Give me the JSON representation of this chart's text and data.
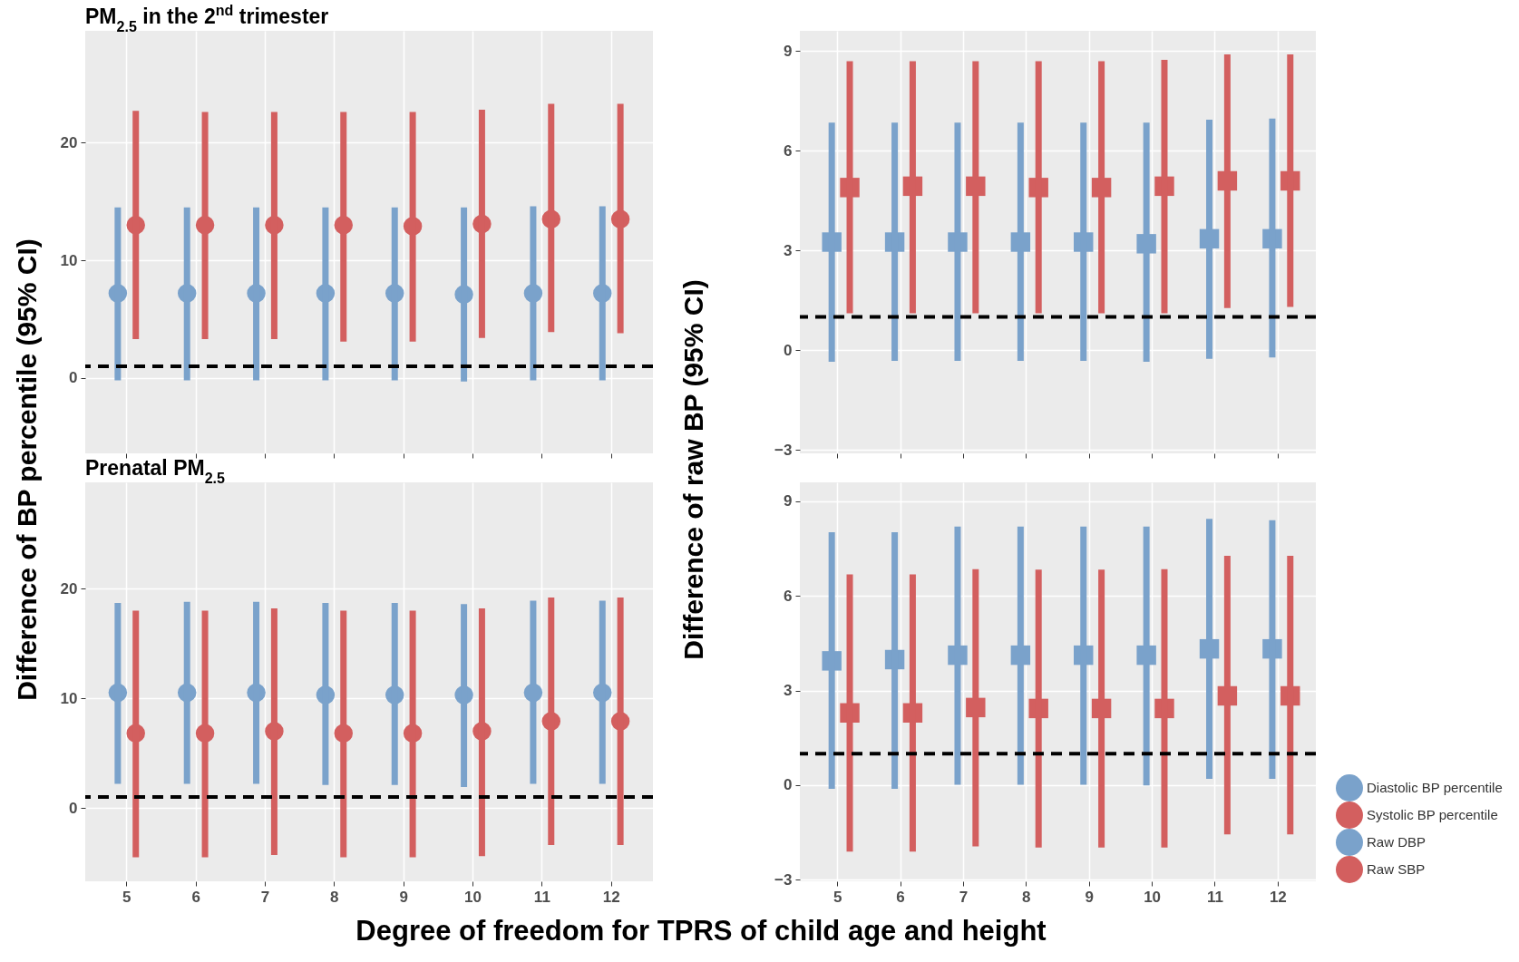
{
  "chart_data": [
    {
      "type": "scatter",
      "title": "PM$_{2.5}$ in the 2$^{nd}$ trimester",
      "ylabel": "Difference of BP percentile (95% CI)",
      "categories": [
        "5",
        "6",
        "7",
        "8",
        "9",
        "10",
        "11",
        "12"
      ],
      "marker": "circle",
      "grid": true,
      "tick_labels": "y",
      "ylim": [
        -6.4,
        29.5
      ],
      "yticks": [
        0,
        10,
        20
      ],
      "series": [
        {
          "color": "#7aa2cb",
          "values": [
            7.2,
            7.2,
            7.2,
            7.2,
            7.2,
            7.1,
            7.2,
            7.2
          ],
          "errors": [
            [
              -0.2,
              14.5
            ],
            [
              -0.2,
              14.5
            ],
            [
              -0.2,
              14.5
            ],
            [
              -0.2,
              14.5
            ],
            [
              -0.2,
              14.5
            ],
            [
              -0.3,
              14.5
            ],
            [
              -0.2,
              14.6
            ],
            [
              -0.2,
              14.6
            ]
          ]
        },
        {
          "color": "#d35f5f",
          "values": [
            13,
            13,
            13,
            13,
            12.9,
            13.1,
            13.5,
            13.5
          ],
          "errors": [
            [
              3.3,
              22.7
            ],
            [
              3.3,
              22.6
            ],
            [
              3.3,
              22.6
            ],
            [
              3.1,
              22.6
            ],
            [
              3.1,
              22.6
            ],
            [
              3.4,
              22.8
            ],
            [
              3.9,
              23.3
            ],
            [
              3.8,
              23.3
            ]
          ]
        }
      ],
      "ref_lines": [
        {
          "axis": "y",
          "value": 1,
          "color": "#000000",
          "line_style": "dashed"
        }
      ]
    },
    {
      "type": "scatter",
      "ylabel": "Difference of raw BP (95% CI)",
      "categories": [
        "5",
        "6",
        "7",
        "8",
        "9",
        "10",
        "11",
        "12"
      ],
      "marker": "square",
      "grid": true,
      "tick_labels": "y",
      "ylim": [
        -3.1,
        9.6
      ],
      "yticks": [
        -3,
        0,
        3,
        6,
        9
      ],
      "series": [
        {
          "color": "#7aa2cb",
          "values": [
            3.25,
            3.25,
            3.25,
            3.25,
            3.25,
            3.2,
            3.35,
            3.35
          ],
          "errors": [
            [
              -0.35,
              6.84
            ],
            [
              -0.32,
              6.84
            ],
            [
              -0.32,
              6.84
            ],
            [
              -0.32,
              6.84
            ],
            [
              -0.32,
              6.84
            ],
            [
              -0.35,
              6.84
            ],
            [
              -0.26,
              6.93
            ],
            [
              -0.22,
              6.96
            ]
          ]
        },
        {
          "color": "#d35f5f",
          "values": [
            4.89,
            4.93,
            4.93,
            4.89,
            4.89,
            4.93,
            5.09,
            5.09
          ],
          "errors": [
            [
              1.11,
              8.69
            ],
            [
              1.11,
              8.69
            ],
            [
              1.11,
              8.69
            ],
            [
              1.11,
              8.69
            ],
            [
              1.11,
              8.69
            ],
            [
              1.11,
              8.73
            ],
            [
              1.27,
              8.89
            ],
            [
              1.3,
              8.89
            ]
          ]
        }
      ],
      "ref_lines": [
        {
          "axis": "y",
          "value": 1,
          "color": "#000000",
          "line_style": "dashed"
        }
      ]
    },
    {
      "type": "scatter",
      "title": "Prenatal PM$_{2.5}$",
      "xlabel": "Degree of freedom for TPRS of child age and height",
      "categories": [
        "5",
        "6",
        "7",
        "8",
        "9",
        "10",
        "11",
        "12"
      ],
      "marker": "circle",
      "grid": true,
      "legend": "right",
      "ylim": [
        -6.7,
        29.7
      ],
      "yticks": [
        0,
        10,
        20
      ],
      "series": [
        {
          "name": "Diastolic BP percentile",
          "color": "#7aa2cb",
          "values": [
            10.5,
            10.5,
            10.5,
            10.3,
            10.3,
            10.3,
            10.5,
            10.5
          ],
          "errors": [
            [
              2.2,
              18.7
            ],
            [
              2.2,
              18.8
            ],
            [
              2.2,
              18.8
            ],
            [
              2.1,
              18.7
            ],
            [
              2.1,
              18.7
            ],
            [
              1.9,
              18.6
            ],
            [
              2.2,
              18.9
            ],
            [
              2.2,
              18.9
            ]
          ]
        },
        {
          "name": "Systolic BP percentile",
          "color": "#d35f5f",
          "values": [
            6.8,
            6.8,
            7.0,
            6.8,
            6.8,
            7.0,
            7.9,
            7.9
          ],
          "errors": [
            [
              -4.5,
              18.0
            ],
            [
              -4.5,
              18.0
            ],
            [
              -4.3,
              18.2
            ],
            [
              -4.5,
              18.0
            ],
            [
              -4.5,
              18.0
            ],
            [
              -4.4,
              18.2
            ],
            [
              -3.4,
              19.2
            ],
            [
              -3.4,
              19.2
            ]
          ]
        }
      ],
      "ref_lines": [
        {
          "axis": "y",
          "value": 1,
          "color": "#000000",
          "line_style": "dashed"
        }
      ]
    },
    {
      "type": "scatter",
      "categories": [
        "5",
        "6",
        "7",
        "8",
        "9",
        "10",
        "11",
        "12"
      ],
      "marker": "square",
      "grid": true,
      "legend": "right",
      "ylim": [
        -3.05,
        9.6
      ],
      "yticks": [
        -3,
        0,
        3,
        6,
        9
      ],
      "series": [
        {
          "name": "Raw DBP",
          "color": "#7aa2cb",
          "values": [
            3.94,
            3.98,
            4.12,
            4.12,
            4.12,
            4.12,
            4.32,
            4.32
          ],
          "errors": [
            [
              -0.12,
              8.02
            ],
            [
              -0.12,
              8.02
            ],
            [
              0.01,
              8.2
            ],
            [
              0.01,
              8.2
            ],
            [
              0.01,
              8.2
            ],
            [
              -0.01,
              8.2
            ],
            [
              0.2,
              8.44
            ],
            [
              0.2,
              8.4
            ]
          ]
        },
        {
          "name": "Raw SBP",
          "color": "#d35f5f",
          "values": [
            2.29,
            2.29,
            2.46,
            2.43,
            2.43,
            2.43,
            2.83,
            2.83
          ],
          "errors": [
            [
              -2.11,
              6.68
            ],
            [
              -2.11,
              6.68
            ],
            [
              -1.94,
              6.85
            ],
            [
              -1.98,
              6.83
            ],
            [
              -1.98,
              6.83
            ],
            [
              -1.98,
              6.85
            ],
            [
              -1.56,
              7.27
            ],
            [
              -1.56,
              7.27
            ]
          ]
        }
      ],
      "ref_lines": [
        {
          "axis": "y",
          "value": 1,
          "color": "#000000",
          "line_style": "dashed"
        }
      ]
    }
  ]
}
